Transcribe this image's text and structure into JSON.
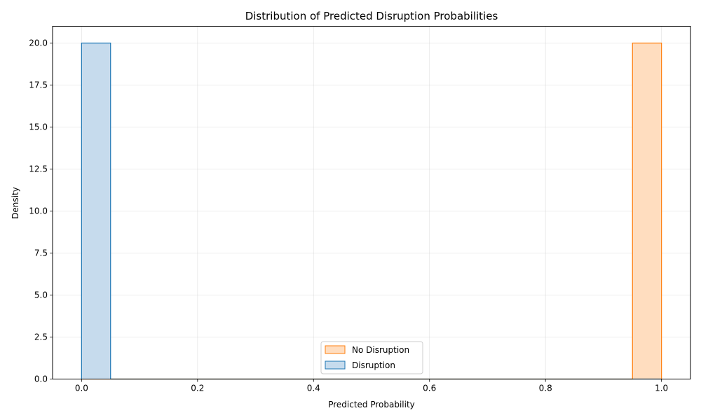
{
  "chart_data": {
    "type": "histogram",
    "title": "Distribution of Predicted Disruption Probabilities",
    "xlabel": "Predicted Probability",
    "ylabel": "Density",
    "xlim": [
      -0.05,
      1.05
    ],
    "ylim": [
      0,
      21
    ],
    "xticks": [
      "0.0",
      "0.2",
      "0.4",
      "0.6",
      "0.8",
      "1.0"
    ],
    "yticks": [
      "0.0",
      "2.5",
      "5.0",
      "7.5",
      "10.0",
      "12.5",
      "15.0",
      "17.5",
      "20.0"
    ],
    "grid": true,
    "legend_position": "lower center",
    "bin_edges": [
      0.0,
      0.05,
      0.1,
      0.15,
      0.2,
      0.25,
      0.3,
      0.35,
      0.4,
      0.45,
      0.5,
      0.55,
      0.6,
      0.65,
      0.7,
      0.75,
      0.8,
      0.85,
      0.9,
      0.95,
      1.0
    ],
    "series": [
      {
        "name": "No Disruption",
        "edge_color": "#ff7f0e",
        "fill_color": "#ffddbf",
        "values": [
          0,
          0,
          0,
          0,
          0,
          0,
          0,
          0,
          0,
          0,
          0,
          0,
          0,
          0,
          0,
          0,
          0,
          0,
          0,
          20
        ]
      },
      {
        "name": "Disruption",
        "edge_color": "#1f77b4",
        "fill_color": "#c6dbed",
        "values": [
          20,
          0,
          0,
          0,
          0,
          0,
          0,
          0,
          0,
          0,
          0,
          0,
          0,
          0,
          0,
          0,
          0,
          0,
          0,
          0
        ]
      }
    ]
  }
}
